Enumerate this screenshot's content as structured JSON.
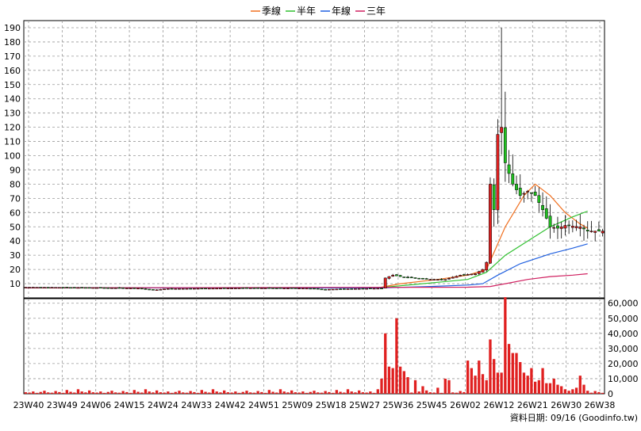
{
  "legend": [
    {
      "label": "季線",
      "color": "#f07020"
    },
    {
      "label": "半年",
      "color": "#30c030"
    },
    {
      "label": "年線",
      "color": "#2060e0"
    },
    {
      "label": "三年",
      "color": "#d02060"
    }
  ],
  "footer": "資料日期: 09/16  (Goodinfo.tw)",
  "chart_data": [
    {
      "type": "candlestick",
      "title": "",
      "ylim": [
        0,
        195
      ],
      "y_ticks": [
        10,
        20,
        30,
        40,
        50,
        60,
        70,
        80,
        90,
        100,
        110,
        120,
        130,
        140,
        150,
        160,
        170,
        180,
        190
      ],
      "x_ticks": [
        "23W40",
        "23W49",
        "24W06",
        "24W15",
        "24W24",
        "24W33",
        "24W42",
        "24W51",
        "25W09",
        "25W18",
        "25W27",
        "25W36",
        "25W45",
        "26W02",
        "26W12",
        "26W21",
        "26W30",
        "26W38"
      ],
      "n_bars": 155,
      "grid": true,
      "keypoints": [
        {
          "i": 0,
          "c": 7.5
        },
        {
          "i": 20,
          "c": 7.2
        },
        {
          "i": 30,
          "c": 6.8
        },
        {
          "i": 34,
          "c": 5.5
        },
        {
          "i": 38,
          "c": 6.5
        },
        {
          "i": 60,
          "c": 7.0
        },
        {
          "i": 75,
          "c": 6.8
        },
        {
          "i": 80,
          "c": 6.0
        },
        {
          "i": 88,
          "c": 6.5
        },
        {
          "i": 95,
          "c": 6.8
        },
        {
          "i": 96,
          "c": 14
        },
        {
          "i": 98,
          "c": 16
        },
        {
          "i": 100,
          "c": 15
        },
        {
          "i": 104,
          "c": 14
        },
        {
          "i": 108,
          "c": 13
        },
        {
          "i": 112,
          "c": 13
        },
        {
          "i": 116,
          "c": 16
        },
        {
          "i": 120,
          "c": 17
        },
        {
          "i": 122,
          "c": 20
        },
        {
          "i": 123,
          "c": 25
        },
        {
          "i": 124,
          "c": 80
        },
        {
          "i": 125,
          "c": 62
        },
        {
          "i": 126,
          "c": 115
        },
        {
          "i": 127,
          "c": 120
        },
        {
          "i": 128,
          "c": 95
        },
        {
          "i": 130,
          "c": 80
        },
        {
          "i": 132,
          "c": 72
        },
        {
          "i": 134,
          "c": 75
        },
        {
          "i": 136,
          "c": 72
        },
        {
          "i": 138,
          "c": 62
        },
        {
          "i": 140,
          "c": 50
        },
        {
          "i": 142,
          "c": 49
        },
        {
          "i": 144,
          "c": 51
        },
        {
          "i": 148,
          "c": 50
        },
        {
          "i": 150,
          "c": 47
        }
      ],
      "series": [
        {
          "name": "季線",
          "points": [
            [
              0,
              7
            ],
            [
              94,
              7
            ],
            [
              100,
              10
            ],
            [
              110,
              13
            ],
            [
              118,
              16
            ],
            [
              123,
              20
            ],
            [
              128,
              50
            ],
            [
              133,
              72
            ],
            [
              136,
              80
            ],
            [
              140,
              72
            ],
            [
              144,
              60
            ],
            [
              148,
              52
            ],
            [
              150,
              49
            ]
          ]
        },
        {
          "name": "半年",
          "points": [
            [
              0,
              7
            ],
            [
              94,
              7
            ],
            [
              100,
              8.5
            ],
            [
              110,
              11
            ],
            [
              118,
              13
            ],
            [
              123,
              18
            ],
            [
              128,
              30
            ],
            [
              134,
              40
            ],
            [
              140,
              50
            ],
            [
              146,
              57
            ],
            [
              150,
              61
            ]
          ]
        },
        {
          "name": "年線",
          "points": [
            [
              0,
              7
            ],
            [
              95,
              7
            ],
            [
              108,
              8
            ],
            [
              118,
              9
            ],
            [
              122,
              10
            ],
            [
              126,
              16
            ],
            [
              132,
              24
            ],
            [
              140,
              31
            ],
            [
              146,
              35
            ],
            [
              150,
              38
            ]
          ]
        },
        {
          "name": "三年",
          "points": [
            [
              0,
              7
            ],
            [
              118,
              7.5
            ],
            [
              124,
              8
            ],
            [
              128,
              10
            ],
            [
              134,
              13
            ],
            [
              140,
              15
            ],
            [
              146,
              16
            ],
            [
              150,
              17
            ]
          ]
        }
      ]
    },
    {
      "type": "bar",
      "title": "",
      "ylim": [
        0,
        63000
      ],
      "y_ticks": [
        0,
        10000,
        20000,
        30000,
        40000,
        50000,
        60000
      ],
      "y_tick_labels": [
        "0",
        "10,000",
        "20,000",
        "30,000",
        "40,000",
        "50,000",
        "60,000"
      ],
      "spikes": [
        {
          "i": 94,
          "v": 3000
        },
        {
          "i": 95,
          "v": 10000
        },
        {
          "i": 96,
          "v": 40000
        },
        {
          "i": 97,
          "v": 18000
        },
        {
          "i": 98,
          "v": 17000
        },
        {
          "i": 99,
          "v": 50000
        },
        {
          "i": 100,
          "v": 18000
        },
        {
          "i": 101,
          "v": 15000
        },
        {
          "i": 102,
          "v": 11000
        },
        {
          "i": 104,
          "v": 9000
        },
        {
          "i": 106,
          "v": 5000
        },
        {
          "i": 110,
          "v": 4000
        },
        {
          "i": 112,
          "v": 10000
        },
        {
          "i": 113,
          "v": 9000
        },
        {
          "i": 118,
          "v": 22000
        },
        {
          "i": 119,
          "v": 17000
        },
        {
          "i": 120,
          "v": 12000
        },
        {
          "i": 121,
          "v": 22000
        },
        {
          "i": 122,
          "v": 13000
        },
        {
          "i": 123,
          "v": 9000
        },
        {
          "i": 124,
          "v": 36000
        },
        {
          "i": 125,
          "v": 23000
        },
        {
          "i": 126,
          "v": 14000
        },
        {
          "i": 127,
          "v": 14000
        },
        {
          "i": 128,
          "v": 64000
        },
        {
          "i": 129,
          "v": 33000
        },
        {
          "i": 130,
          "v": 27000
        },
        {
          "i": 131,
          "v": 27000
        },
        {
          "i": 132,
          "v": 21000
        },
        {
          "i": 133,
          "v": 14000
        },
        {
          "i": 134,
          "v": 12000
        },
        {
          "i": 135,
          "v": 17000
        },
        {
          "i": 136,
          "v": 8000
        },
        {
          "i": 137,
          "v": 9000
        },
        {
          "i": 138,
          "v": 17000
        },
        {
          "i": 139,
          "v": 7000
        },
        {
          "i": 140,
          "v": 7000
        },
        {
          "i": 141,
          "v": 10000
        },
        {
          "i": 142,
          "v": 6000
        },
        {
          "i": 143,
          "v": 5000
        },
        {
          "i": 144,
          "v": 3000
        },
        {
          "i": 145,
          "v": 2000
        },
        {
          "i": 146,
          "v": 3000
        },
        {
          "i": 147,
          "v": 4000
        },
        {
          "i": 148,
          "v": 12000
        },
        {
          "i": 149,
          "v": 6000
        },
        {
          "i": 150,
          "v": 2000
        }
      ],
      "base_pattern": [
        1000,
        800,
        1500,
        600,
        1200,
        2000,
        900,
        700,
        1800,
        1100,
        600,
        2500,
        1300,
        800,
        3000,
        1500,
        900,
        2200
      ]
    }
  ]
}
